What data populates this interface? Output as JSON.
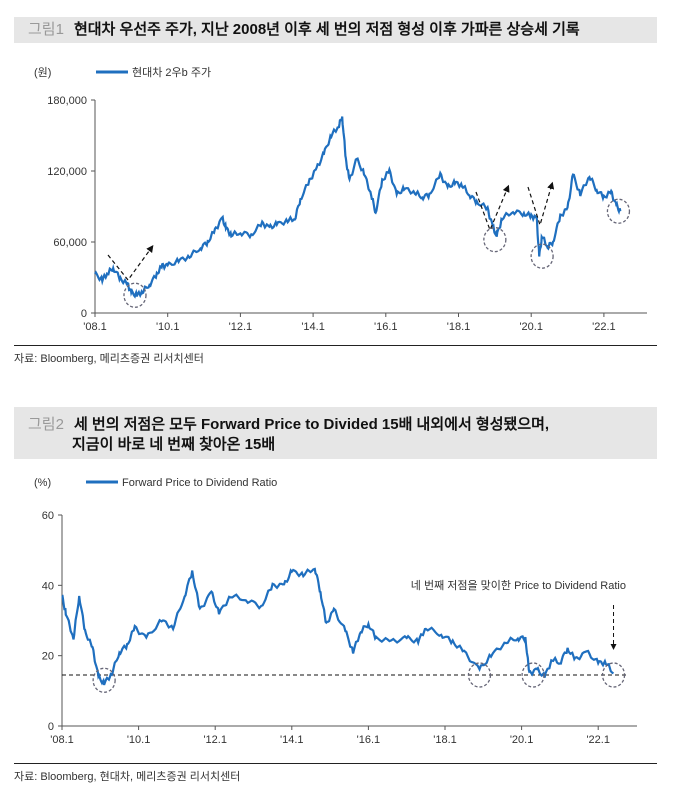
{
  "figures": [
    {
      "label": "그림1",
      "title": "현대차 우선주 주가, 지난 2008년 이후 세 번의 저점 형성 이후 가파른 상승세 기록",
      "source": "자료: Bloomberg, 메리츠증권 리서치센터"
    },
    {
      "label": "그림2",
      "title_line1": "세 번의 저점은 모두 Forward Price to Divided 15배 내외에서 형성됐으며,",
      "title_line2": "지금이 바로 네 번째 찾아온 15배",
      "source": "자료: Bloomberg, 현대차, 메리츠증권 리서치센터"
    }
  ],
  "colors": {
    "line": "#1f6fbf",
    "annotation": "#222222"
  },
  "chart_data": [
    {
      "type": "line",
      "unit_label": "(원)",
      "series": [
        {
          "name": "현대차 2우b 주가",
          "x": [
            2008.0,
            2008.2,
            2008.35,
            2008.5,
            2008.7,
            2008.9,
            2009.0,
            2009.15,
            2009.3,
            2009.5,
            2009.7,
            2009.85,
            2010.0,
            2010.3,
            2010.6,
            2010.9,
            2011.1,
            2011.3,
            2011.5,
            2011.6,
            2011.75,
            2012.0,
            2012.3,
            2012.6,
            2012.8,
            2013.0,
            2013.3,
            2013.5,
            2013.65,
            2013.9,
            2014.1,
            2014.3,
            2014.5,
            2014.7,
            2014.8,
            2014.9,
            2015.0,
            2015.2,
            2015.4,
            2015.6,
            2015.72,
            2015.9,
            2016.1,
            2016.3,
            2016.5,
            2016.8,
            2017.0,
            2017.2,
            2017.5,
            2017.7,
            2017.9,
            2018.1,
            2018.3,
            2018.5,
            2018.8,
            2018.95,
            2019.05,
            2019.2,
            2019.5,
            2019.8,
            2020.0,
            2020.15,
            2020.22,
            2020.3,
            2020.45,
            2020.6,
            2020.8,
            2021.0,
            2021.15,
            2021.35,
            2021.6,
            2021.8,
            2022.0,
            2022.2,
            2022.35,
            2022.45
          ],
          "values": [
            33000,
            28000,
            34000,
            38000,
            29000,
            24000,
            17000,
            15000,
            18000,
            24000,
            33000,
            40000,
            40000,
            44000,
            48000,
            55000,
            60000,
            70000,
            80000,
            72000,
            66000,
            68000,
            66000,
            76000,
            72000,
            75000,
            78000,
            80000,
            96000,
            112000,
            122000,
            135000,
            150000,
            158000,
            166000,
            130000,
            112000,
            130000,
            118000,
            100000,
            85000,
            112000,
            120000,
            100000,
            105000,
            102000,
            98000,
            100000,
            117000,
            106000,
            110000,
            108000,
            100000,
            94000,
            88000,
            72000,
            65000,
            80000,
            86000,
            84000,
            82000,
            80000,
            48000,
            65000,
            56000,
            60000,
            82000,
            88000,
            117000,
            100000,
            116000,
            104000,
            98000,
            102000,
            90000,
            86000
          ]
        }
      ],
      "xticks": [
        "'08.1",
        "'10.1",
        "'12.1",
        "'14.1",
        "'16.1",
        "'18.1",
        "'20.1",
        "'22.1"
      ],
      "yticks": [
        "0",
        "60,000",
        "120,000",
        "180,000"
      ],
      "ylim": [
        0,
        180000
      ],
      "xlim": [
        2008,
        2023.1
      ],
      "troughs": [
        [
          2009.1,
          15000
        ],
        [
          2019.0,
          62000
        ],
        [
          2020.3,
          48000
        ],
        [
          2022.4,
          86000
        ]
      ]
    },
    {
      "type": "line",
      "unit_label": "(%)",
      "series": [
        {
          "name": "Forward Price to Dividend Ratio",
          "x": [
            2008.0,
            2008.1,
            2008.3,
            2008.45,
            2008.6,
            2008.8,
            2008.95,
            2009.1,
            2009.3,
            2009.5,
            2009.7,
            2009.9,
            2010.2,
            2010.6,
            2010.9,
            2011.2,
            2011.4,
            2011.6,
            2011.9,
            2012.1,
            2012.4,
            2012.8,
            2013.2,
            2013.5,
            2013.8,
            2014.0,
            2014.3,
            2014.6,
            2014.75,
            2014.9,
            2015.1,
            2015.4,
            2015.6,
            2015.8,
            2016.0,
            2016.2,
            2016.6,
            2017.0,
            2017.3,
            2017.5,
            2017.9,
            2018.2,
            2018.5,
            2018.9,
            2019.2,
            2019.6,
            2019.9,
            2020.1,
            2020.2,
            2020.4,
            2020.6,
            2020.8,
            2021.0,
            2021.2,
            2021.4,
            2021.7,
            2022.0,
            2022.2,
            2022.4
          ],
          "values": [
            37,
            32,
            25,
            37,
            27,
            22,
            14,
            12,
            15,
            21,
            23,
            28,
            25,
            30,
            28,
            37,
            44,
            33,
            38,
            32,
            37,
            36,
            34,
            40,
            40,
            44,
            43,
            45,
            38,
            29,
            33,
            27,
            21,
            27,
            29,
            25,
            24,
            25,
            24,
            28,
            26,
            24,
            21,
            16,
            20,
            24,
            25,
            25,
            15,
            16,
            14,
            19,
            18,
            22,
            19,
            21,
            18,
            18,
            15
          ]
        }
      ],
      "xticks": [
        "'08.1",
        "'10.1",
        "'12.1",
        "'14.1",
        "'16.1",
        "'18.1",
        "'20.1",
        "'22.1"
      ],
      "yticks": [
        "0",
        "20",
        "40",
        "60"
      ],
      "ylim": [
        0,
        60
      ],
      "xlim": [
        2008,
        2023.4
      ],
      "reference_line": 14.5,
      "troughs": [
        [
          2009.1,
          13
        ],
        [
          2018.9,
          14.5
        ],
        [
          2020.3,
          14.5
        ],
        [
          2022.4,
          14.5
        ]
      ],
      "annotation": "네 번째 저점을 맞이한 Price to Dividend Ratio"
    }
  ]
}
